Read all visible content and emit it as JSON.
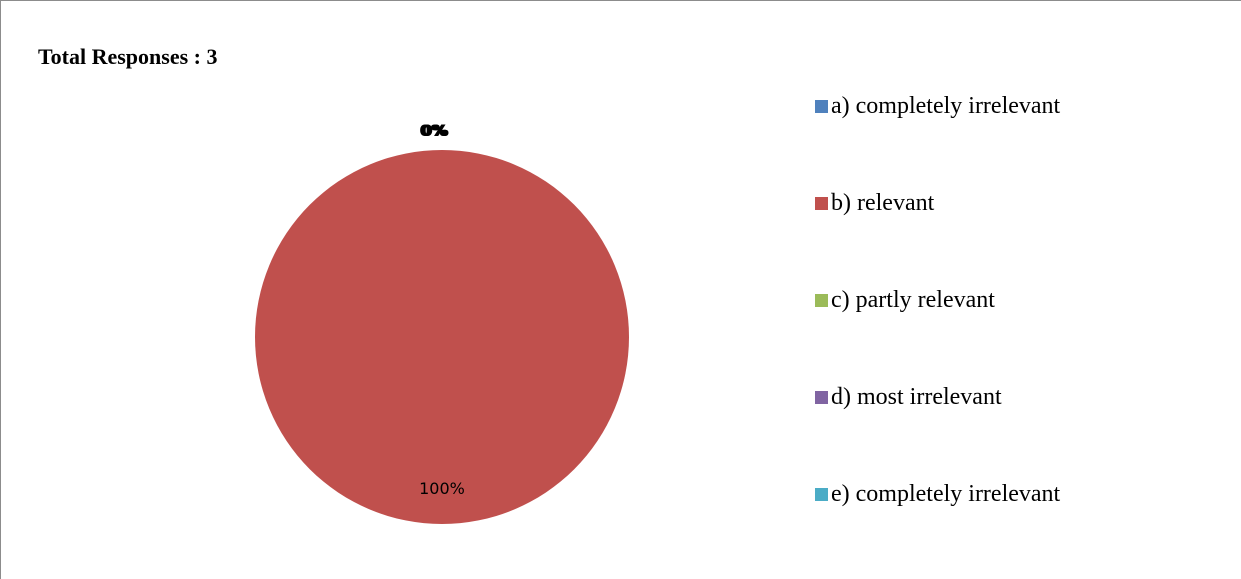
{
  "chart_data": {
    "type": "pie",
    "title": "Total Responses : 3",
    "categories": [
      "a) completely irrelevant",
      "b) relevant",
      "c) partly relevant",
      "d) most irrelevant",
      "e) completely irrelevant"
    ],
    "values": [
      0,
      100,
      0,
      0,
      0
    ],
    "data_labels": [
      "0%",
      "100%",
      "0%",
      "0%",
      "0%"
    ],
    "colors": [
      "#4f81bd",
      "#c0504d",
      "#9bbb59",
      "#8064a2",
      "#4bacc6"
    ],
    "legend_position": "right"
  }
}
